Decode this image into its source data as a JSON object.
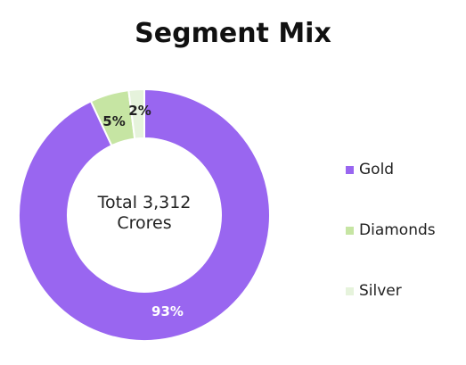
{
  "chart_data": {
    "type": "donut",
    "title": "Segment Mix",
    "center_text": [
      "Total 3,312",
      "Crores"
    ],
    "categories": [
      "Gold",
      "Diamonds",
      "Silver"
    ],
    "values": [
      93,
      5,
      2
    ],
    "value_labels": [
      "93%",
      "5%",
      "2%"
    ],
    "colors": [
      "#9966f0",
      "#c6e5a3",
      "#e6f3dc"
    ],
    "label_colors": [
      "#ffffff",
      "#222222",
      "#222222"
    ],
    "legend_position": "right"
  }
}
